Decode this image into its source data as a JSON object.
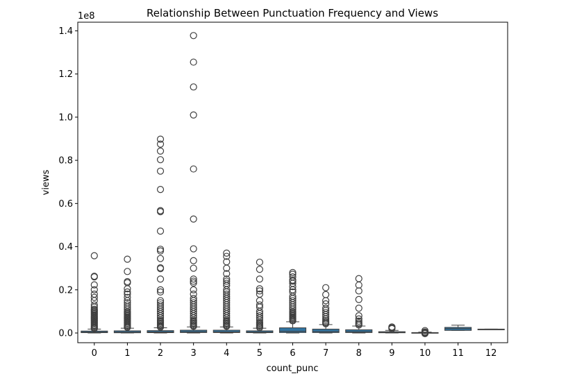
{
  "chart_data": {
    "type": "box",
    "title": "Relationship Between Punctuation Frequency and Views",
    "xlabel": "count_punc",
    "ylabel": "views",
    "y_offset_label": "1e8",
    "ylim": [
      -0.045,
      1.44
    ],
    "y_ticks": [
      0.0,
      0.2,
      0.4,
      0.6,
      0.8,
      1.0,
      1.2,
      1.4
    ],
    "y_tick_labels": [
      "0.0",
      "0.2",
      "0.4",
      "0.6",
      "0.8",
      "1.0",
      "1.2",
      "1.4"
    ],
    "grid": false,
    "box_color": "#3274a1",
    "categories": [
      "0",
      "1",
      "2",
      "3",
      "4",
      "5",
      "6",
      "7",
      "8",
      "9",
      "10",
      "11",
      "12"
    ],
    "boxes": [
      {
        "category": "0",
        "whislo": 0.0,
        "q1": 0.0015,
        "med": 0.004,
        "q3": 0.009,
        "whishi": 0.018,
        "fliers": [
          0.358,
          0.263,
          0.26,
          0.223,
          0.2,
          0.18,
          0.165,
          0.15,
          0.13,
          0.12,
          0.11,
          0.105,
          0.1,
          0.095,
          0.09,
          0.085,
          0.08,
          0.075,
          0.07,
          0.065,
          0.06,
          0.055,
          0.05,
          0.045,
          0.04,
          0.035,
          0.03,
          0.025,
          0.021
        ]
      },
      {
        "category": "1",
        "whislo": 0.0,
        "q1": 0.001,
        "med": 0.004,
        "q3": 0.01,
        "whishi": 0.022,
        "fliers": [
          0.342,
          0.285,
          0.238,
          0.233,
          0.205,
          0.19,
          0.18,
          0.165,
          0.15,
          0.14,
          0.13,
          0.12,
          0.11,
          0.1,
          0.095,
          0.09,
          0.085,
          0.08,
          0.075,
          0.07,
          0.065,
          0.06,
          0.055,
          0.05,
          0.045,
          0.04,
          0.035,
          0.03,
          0.026
        ]
      },
      {
        "category": "2",
        "whislo": 0.0,
        "q1": 0.0015,
        "med": 0.005,
        "q3": 0.011,
        "whishi": 0.024,
        "fliers": [
          0.898,
          0.875,
          0.843,
          0.803,
          0.75,
          0.665,
          0.567,
          0.562,
          0.472,
          0.388,
          0.38,
          0.345,
          0.302,
          0.298,
          0.25,
          0.2,
          0.19,
          0.15,
          0.14,
          0.13,
          0.12,
          0.11,
          0.1,
          0.09,
          0.08,
          0.07,
          0.06,
          0.055,
          0.05,
          0.045,
          0.04,
          0.035,
          0.03,
          0.027
        ]
      },
      {
        "category": "3",
        "whislo": 0.0,
        "q1": 0.002,
        "med": 0.006,
        "q3": 0.013,
        "whishi": 0.028,
        "fliers": [
          1.378,
          1.255,
          1.14,
          1.01,
          0.76,
          0.528,
          0.39,
          0.335,
          0.3,
          0.25,
          0.24,
          0.232,
          0.2,
          0.18,
          0.16,
          0.15,
          0.14,
          0.13,
          0.12,
          0.11,
          0.1,
          0.09,
          0.08,
          0.07,
          0.06,
          0.055,
          0.05,
          0.045,
          0.04,
          0.035,
          0.031
        ]
      },
      {
        "category": "4",
        "whislo": 0.0,
        "q1": 0.002,
        "med": 0.005,
        "q3": 0.013,
        "whishi": 0.028,
        "fliers": [
          0.37,
          0.355,
          0.33,
          0.3,
          0.275,
          0.25,
          0.24,
          0.23,
          0.22,
          0.2,
          0.19,
          0.18,
          0.17,
          0.16,
          0.15,
          0.14,
          0.13,
          0.12,
          0.11,
          0.1,
          0.09,
          0.08,
          0.07,
          0.06,
          0.055,
          0.05,
          0.045,
          0.04,
          0.035,
          0.031
        ]
      },
      {
        "category": "5",
        "whislo": 0.0,
        "q1": 0.0015,
        "med": 0.004,
        "q3": 0.01,
        "whishi": 0.022,
        "fliers": [
          0.328,
          0.295,
          0.25,
          0.205,
          0.195,
          0.18,
          0.15,
          0.13,
          0.12,
          0.1,
          0.09,
          0.08,
          0.07,
          0.06,
          0.05,
          0.045,
          0.04,
          0.035,
          0.03,
          0.025
        ]
      },
      {
        "category": "6",
        "whislo": 0.0,
        "q1": 0.002,
        "med": 0.008,
        "q3": 0.024,
        "whishi": 0.052,
        "fliers": [
          0.28,
          0.272,
          0.26,
          0.245,
          0.24,
          0.23,
          0.215,
          0.2,
          0.19,
          0.17,
          0.16,
          0.15,
          0.14,
          0.13,
          0.12,
          0.11,
          0.1,
          0.095,
          0.09,
          0.085,
          0.08,
          0.075,
          0.07,
          0.065,
          0.06,
          0.056
        ]
      },
      {
        "category": "7",
        "whislo": 0.0,
        "q1": 0.002,
        "med": 0.007,
        "q3": 0.018,
        "whishi": 0.039,
        "fliers": [
          0.21,
          0.178,
          0.15,
          0.135,
          0.115,
          0.105,
          0.095,
          0.085,
          0.075,
          0.065,
          0.058,
          0.052,
          0.047,
          0.043
        ]
      },
      {
        "category": "8",
        "whislo": 0.0,
        "q1": 0.002,
        "med": 0.006,
        "q3": 0.015,
        "whishi": 0.032,
        "fliers": [
          0.252,
          0.222,
          0.195,
          0.155,
          0.115,
          0.08,
          0.065,
          0.055,
          0.048,
          0.042,
          0.037
        ]
      },
      {
        "category": "9",
        "whislo": 0.0,
        "q1": 0.001,
        "med": 0.003,
        "q3": 0.006,
        "whishi": 0.012,
        "fliers": [
          0.028,
          0.024,
          0.02
        ]
      },
      {
        "category": "10",
        "whislo": 0.0,
        "q1": 0.0005,
        "med": 0.001,
        "q3": 0.002,
        "whishi": 0.004,
        "fliers": [
          0.011,
          0.005,
          0.002,
          -0.001,
          -0.003
        ]
      },
      {
        "category": "11",
        "whislo": 0.012,
        "q1": 0.012,
        "med": 0.02,
        "q3": 0.026,
        "whishi": 0.036,
        "fliers": []
      },
      {
        "category": "12",
        "whislo": 0.017,
        "q1": 0.017,
        "med": 0.017,
        "q3": 0.018,
        "whishi": 0.018,
        "fliers": []
      }
    ]
  }
}
